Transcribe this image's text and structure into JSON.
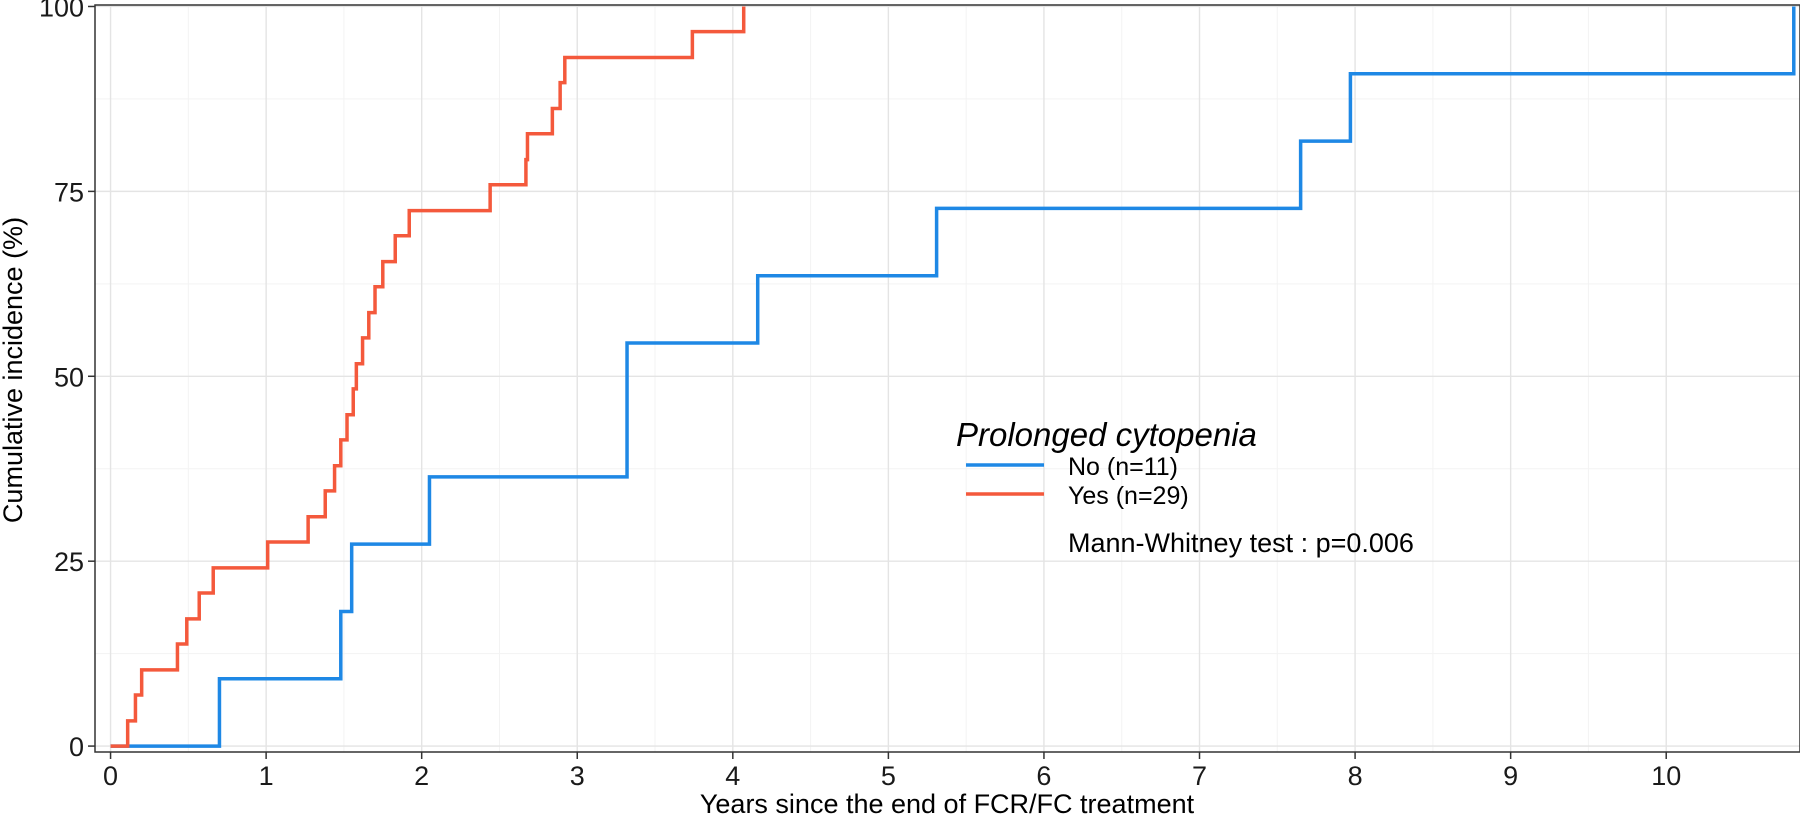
{
  "chart_data": {
    "type": "line",
    "step": true,
    "title": "",
    "xlabel": "Years since the end of FCR/FC treatment",
    "ylabel": "Cumulative incidence (%)",
    "xlim": [
      -0.1,
      10.86
    ],
    "ylim": [
      -0.8,
      100.2
    ],
    "x_ticks": [
      0,
      1,
      2,
      3,
      4,
      5,
      6,
      7,
      8,
      9,
      10
    ],
    "y_ticks": [
      0,
      25,
      50,
      75,
      100
    ],
    "x_tick_labels": [
      "0",
      "1",
      "2",
      "3",
      "4",
      "5",
      "6",
      "7",
      "8",
      "9",
      "10"
    ],
    "y_tick_labels": [
      "0",
      "25",
      "50",
      "75",
      "100"
    ],
    "grid": true,
    "legend": {
      "title": "Prolonged cytopenia",
      "placement": "center-right"
    },
    "series": [
      {
        "name": "No (n=11)",
        "color": "#1E88E5",
        "x": [
          0,
          0.7,
          1.48,
          1.55,
          2.05,
          3.32,
          4.16,
          5.31,
          7.65,
          7.97,
          10.82,
          10.82
        ],
        "y": [
          0,
          9.1,
          18.2,
          27.3,
          36.4,
          54.5,
          63.6,
          72.7,
          81.8,
          90.9,
          100,
          100
        ]
      },
      {
        "name": "Yes (n=29)",
        "color": "#F4593C",
        "x": [
          0,
          0.11,
          0.16,
          0.2,
          0.43,
          0.49,
          0.57,
          0.66,
          1.01,
          1.27,
          1.38,
          1.44,
          1.48,
          1.52,
          1.56,
          1.58,
          1.62,
          1.66,
          1.7,
          1.75,
          1.83,
          1.92,
          2.44,
          2.67,
          2.68,
          2.84,
          2.89,
          2.91,
          2.92,
          3.74,
          4.07
        ],
        "y": [
          0,
          3.4,
          6.9,
          10.3,
          13.8,
          17.2,
          20.7,
          24.1,
          27.6,
          31.0,
          34.5,
          37.9,
          41.4,
          44.8,
          48.3,
          51.7,
          55.2,
          58.6,
          62.1,
          65.5,
          69.0,
          72.4,
          75.9,
          79.3,
          82.8,
          86.2,
          89.7,
          89.7,
          93.1,
          96.6,
          100
        ]
      }
    ],
    "annotations": [
      "Mann-Whitney test : p=0.006"
    ]
  }
}
